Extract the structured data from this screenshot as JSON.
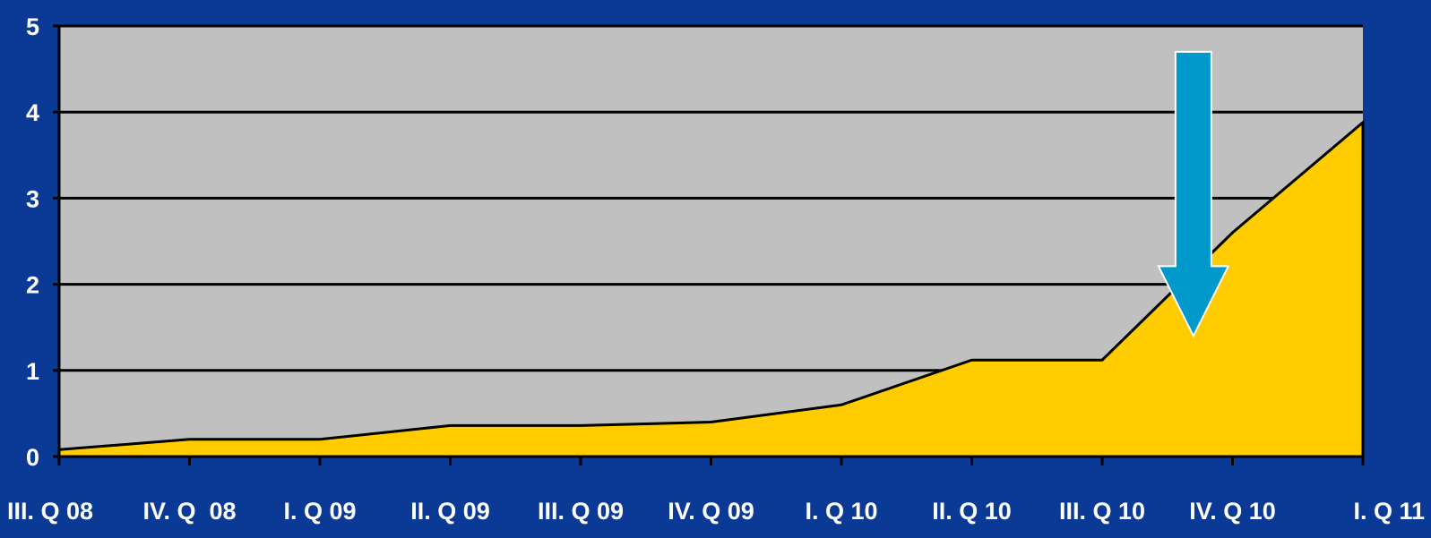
{
  "chart_data": {
    "type": "area",
    "categories": [
      "III. Q 08",
      "IV. Q  08",
      "I. Q 09",
      "II. Q 09",
      "III. Q 09",
      "IV. Q 09",
      "I. Q 10",
      "II. Q 10",
      "III. Q 10",
      "IV. Q 10",
      "I. Q 11"
    ],
    "series": [
      {
        "values": [
          0.08,
          0.2,
          0.2,
          0.36,
          0.36,
          0.4,
          0.6,
          1.12,
          1.12,
          2.6,
          3.88
        ]
      }
    ],
    "ylim": [
      0,
      5
    ],
    "yticks": [
      "0",
      "1",
      "2",
      "3",
      "4",
      "5"
    ],
    "grid": true,
    "annotation": {
      "type": "arrow-down",
      "x": 8.7,
      "from_y": 4.7,
      "to_y": 1.4
    }
  },
  "colors": {
    "background": "#0a3a96",
    "plot_area": "#c0c0c0",
    "area_fill": "#ffcc00",
    "arrow": "#0099cc",
    "axis_text": "#ffffff"
  }
}
